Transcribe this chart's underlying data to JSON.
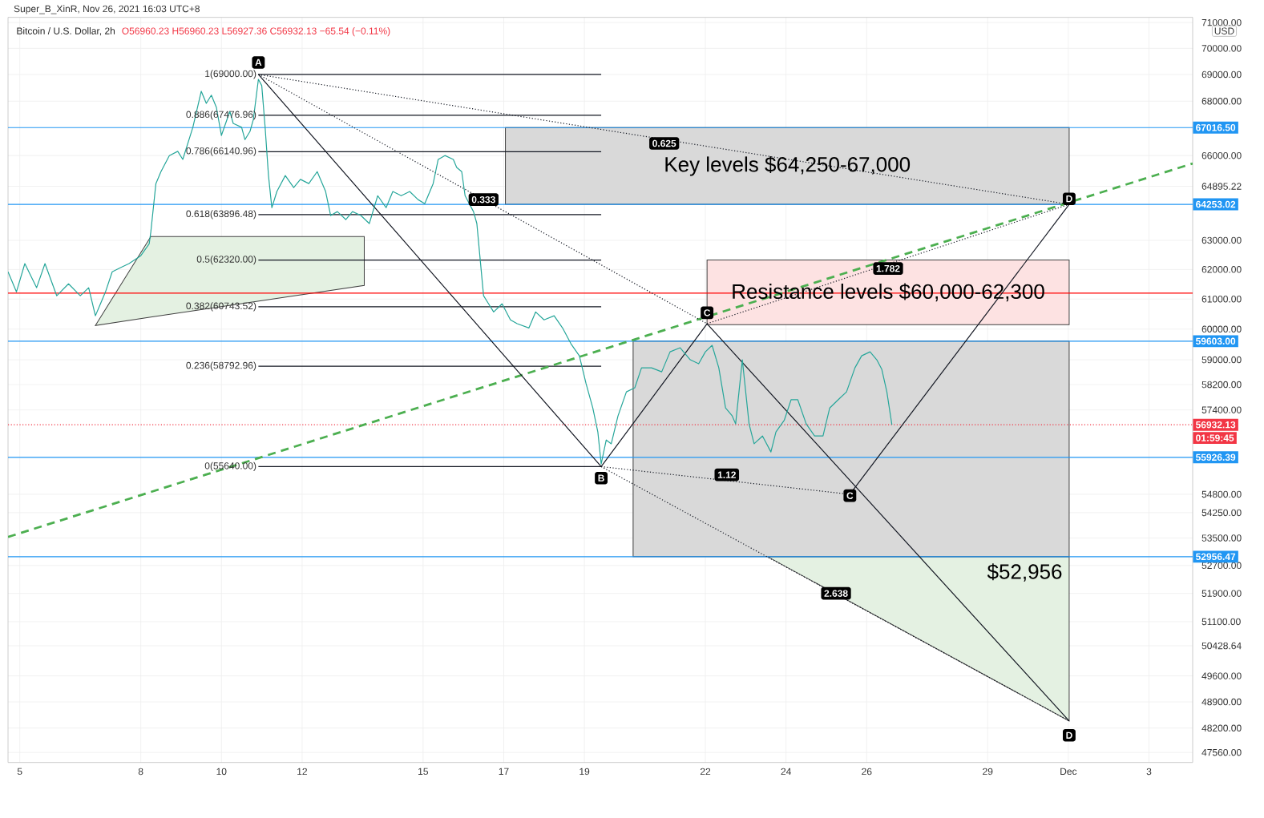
{
  "chart_data": {
    "type": "line",
    "title": "Bitcoin / U.S. Dollar, 2h",
    "subtitle": "O56960.23 H56960.23 L56927.36 C56932.13 −65.54 (−0.11%)",
    "ylabel": "USD",
    "log": "y",
    "grid": true,
    "xlim": [
      "2021-11-04T17:00",
      "2021-12-04T02:00"
    ],
    "ylim": [
      47300,
      71200
    ],
    "xticks": [
      {
        "value": "2021-11-05",
        "label": "5"
      },
      {
        "value": "2021-11-08",
        "label": "8"
      },
      {
        "value": "2021-11-10",
        "label": "10"
      },
      {
        "value": "2021-11-12",
        "label": "12"
      },
      {
        "value": "2021-11-15",
        "label": "15"
      },
      {
        "value": "2021-11-17",
        "label": "17"
      },
      {
        "value": "2021-11-19",
        "label": "19"
      },
      {
        "value": "2021-11-22",
        "label": "22"
      },
      {
        "value": "2021-11-24",
        "label": "24"
      },
      {
        "value": "2021-11-26",
        "label": "26"
      },
      {
        "value": "2021-11-29",
        "label": "29"
      },
      {
        "value": "2021-12-01",
        "label": "Dec"
      },
      {
        "value": "2021-12-03",
        "label": "3"
      }
    ],
    "yticks": [
      {
        "value": 47560,
        "label": "47560.00"
      },
      {
        "value": 48200,
        "label": "48200.00"
      },
      {
        "value": 48900,
        "label": "48900.00"
      },
      {
        "value": 49600,
        "label": "49600.00"
      },
      {
        "value": 50428.64,
        "label": "50428.64"
      },
      {
        "value": 51100,
        "label": "51100.00"
      },
      {
        "value": 51900,
        "label": "51900.00"
      },
      {
        "value": 52700,
        "label": "52700.00"
      },
      {
        "value": 53500,
        "label": "53500.00"
      },
      {
        "value": 54250,
        "label": "54250.00"
      },
      {
        "value": 54800.0,
        "label": "54800.00"
      },
      {
        "value": 57400,
        "label": "57400.00"
      },
      {
        "value": 58200,
        "label": "58200.00"
      },
      {
        "value": 59000,
        "label": "59000.00"
      },
      {
        "value": 60000,
        "label": "60000.00"
      },
      {
        "value": 61000,
        "label": "61000.00"
      },
      {
        "value": 62000,
        "label": "62000.00"
      },
      {
        "value": 63000,
        "label": "63000.00"
      },
      {
        "value": 64895.22,
        "label": "64895.22"
      },
      {
        "value": 66000,
        "label": "66000.00"
      },
      {
        "value": 68000,
        "label": "68000.00"
      },
      {
        "value": 69000,
        "label": "69000.00"
      },
      {
        "value": 70000,
        "label": "70000.00"
      },
      {
        "value": 71000,
        "label": "71000.00"
      }
    ],
    "series": [
      {
        "type": "area",
        "color": "#d9d9d9",
        "x": [
          "2021-11-17T01:00",
          "2021-12-01T00:30"
        ],
        "values": [
          null,
          null
        ],
        "upper": [
          67016.5,
          67016.5
        ],
        "lower": [
          64253.02,
          64253.02
        ]
      },
      {
        "type": "area",
        "color": "#fde2e2",
        "x": [
          "2021-11-22T01:00",
          "2021-12-01T00:30"
        ],
        "values": [
          null,
          null
        ],
        "upper": [
          62320,
          62320
        ],
        "lower": [
          60150,
          60150
        ]
      },
      {
        "type": "area",
        "color": "#e4f1e2",
        "x": [
          "2021-11-23T13:00",
          "2021-12-01T00:30"
        ],
        "values": [
          null,
          null
        ],
        "upper": [
          52956.47,
          52956.47
        ],
        "lower": [
          52956.47,
          48390
        ]
      },
      {
        "type": "area",
        "color": "#d9d9d9",
        "x": [
          "2021-11-20T05:00",
          "2021-12-01T00:30"
        ],
        "values": [
          null,
          null
        ],
        "upper": [
          59603.0,
          59603.0
        ],
        "lower": [
          52956.47,
          52956.47
        ]
      },
      {
        "type": "area",
        "color": "#e4f1e2",
        "x": [
          "2021-11-06T21:00",
          "2021-11-08T06:00",
          "2021-11-13T13:00"
        ],
        "values": [
          null,
          null,
          null
        ],
        "upper": [
          60120,
          63130,
          63130
        ],
        "lower": [
          60120,
          60400,
          61460
        ]
      },
      {
        "name": "1(69000.00)",
        "color": "#131722",
        "x": [
          "2021-11-10T22:00",
          "2021-11-19T10:00"
        ],
        "values": [
          69000,
          69000
        ]
      },
      {
        "name": "0.886(67476.96)",
        "color": "#131722",
        "x": [
          "2021-11-10T22:00",
          "2021-11-19T10:00"
        ],
        "values": [
          67476.96,
          67476.96
        ]
      },
      {
        "name": "0.786(66140.96)",
        "color": "#131722",
        "x": [
          "2021-11-10T22:00",
          "2021-11-19T10:00"
        ],
        "values": [
          66140.96,
          66140.96
        ]
      },
      {
        "name": "0.618(63896.48)",
        "color": "#131722",
        "x": [
          "2021-11-10T22:00",
          "2021-11-19T10:00"
        ],
        "values": [
          63896.48,
          63896.48
        ]
      },
      {
        "name": "0.5(62320.00)",
        "color": "#131722",
        "x": [
          "2021-11-10T22:00",
          "2021-11-19T10:00"
        ],
        "values": [
          62320,
          62320
        ]
      },
      {
        "name": "0.382(60743.52)",
        "color": "#131722",
        "x": [
          "2021-11-10T22:00",
          "2021-11-19T10:00"
        ],
        "values": [
          60743.52,
          60743.52
        ]
      },
      {
        "name": "0.236(58792.96)",
        "color": "#131722",
        "x": [
          "2021-11-10T22:00",
          "2021-11-19T10:00"
        ],
        "values": [
          58792.96,
          58792.96
        ]
      },
      {
        "name": "0(55640.00)",
        "color": "#131722",
        "x": [
          "2021-11-10T22:00",
          "2021-11-19T10:00"
        ],
        "values": [
          55640,
          55640
        ]
      },
      {
        "color": "#4caf50",
        "line_style": "dashed",
        "x": [
          "2021-11-04T17:00",
          "2021-12-04T02:00"
        ],
        "values": [
          53530,
          65710
        ]
      },
      {
        "color": "#131722",
        "x": [
          "2021-11-10T22:00",
          "2021-11-19T10:00",
          "2021-11-22T01:00",
          "2021-12-01T00:30"
        ],
        "values": [
          69000,
          55640,
          60180,
          48390
        ]
      },
      {
        "color": "#131722",
        "x": [
          "2021-11-25T14:00",
          "2021-12-01T00:30"
        ],
        "values": [
          54800,
          64253.02
        ]
      },
      {
        "color": "#131722",
        "line_style": "dotted",
        "x": [
          "2021-11-10T22:00",
          "2021-12-01T00:30"
        ],
        "values": [
          69000,
          64253.02
        ]
      },
      {
        "color": "#131722",
        "line_style": "dotted",
        "x": [
          "2021-11-10T22:00",
          "2021-11-22T01:00"
        ],
        "values": [
          69000,
          60180
        ]
      },
      {
        "color": "#131722",
        "line_style": "dotted",
        "x": [
          "2021-11-22T01:00",
          "2021-12-01T00:30"
        ],
        "values": [
          60180,
          64253.02
        ]
      },
      {
        "color": "#131722",
        "line_style": "dotted",
        "x": [
          "2021-11-19T10:00",
          "2021-11-25T14:00"
        ],
        "values": [
          55640,
          54800
        ]
      },
      {
        "color": "#131722",
        "line_style": "dotted",
        "x": [
          "2021-11-19T10:00",
          "2021-12-01T00:30"
        ],
        "values": [
          55640,
          48390
        ]
      },
      {
        "color": "#26a69a",
        "x": [
          "2021-11-04T17:00",
          "2021-11-04T22:00",
          "2021-11-05T03:00",
          "2021-11-05T10:00",
          "2021-11-05T15:00",
          "2021-11-05T22:00",
          "2021-11-06T05:00",
          "2021-11-06T12:00",
          "2021-11-06T17:00",
          "2021-11-06T21:00",
          "2021-11-07T00:00",
          "2021-11-07T03:00",
          "2021-11-07T07:00",
          "2021-11-07T12:00",
          "2021-11-07T17:00",
          "2021-11-08T00:00",
          "2021-11-08T05:00",
          "2021-11-08T06:00",
          "2021-11-08T09:00",
          "2021-11-08T12:00",
          "2021-11-08T17:00",
          "2021-11-08T22:00",
          "2021-11-09T01:00",
          "2021-11-09T07:00",
          "2021-11-09T12:00",
          "2021-11-09T15:00",
          "2021-11-09T18:00",
          "2021-11-09T21:00",
          "2021-11-10T00:00",
          "2021-11-10T05:00",
          "2021-11-10T07:00",
          "2021-11-10T12:00",
          "2021-11-10T14:00",
          "2021-11-10T17:00",
          "2021-11-10T19:00",
          "2021-11-10T22:00",
          "2021-11-11T00:00",
          "2021-11-11T02:00",
          "2021-11-11T04:00",
          "2021-11-11T06:00",
          "2021-11-11T09:00",
          "2021-11-11T14:00",
          "2021-11-11T19:00",
          "2021-11-11T23:00",
          "2021-11-12T04:00",
          "2021-11-12T09:00",
          "2021-11-12T14:00",
          "2021-11-12T17:00",
          "2021-11-12T21:00",
          "2021-11-13T02:00",
          "2021-11-13T06:00",
          "2021-11-13T11:00",
          "2021-11-13T16:00",
          "2021-11-13T21:00",
          "2021-11-14T02:00",
          "2021-11-14T06:00",
          "2021-11-14T11:00",
          "2021-11-14T16:00",
          "2021-11-14T21:00",
          "2021-11-15T01:00",
          "2021-11-15T06:00",
          "2021-11-15T09:00",
          "2021-11-15T13:00",
          "2021-11-15T18:00",
          "2021-11-15T20:00",
          "2021-11-15T23:00",
          "2021-11-16T01:00",
          "2021-11-16T06:00",
          "2021-11-16T08:00",
          "2021-11-16T10:00",
          "2021-11-16T12:00",
          "2021-11-16T15:00",
          "2021-11-16T18:00",
          "2021-11-16T23:00",
          "2021-11-17T04:00",
          "2021-11-17T08:00",
          "2021-11-17T15:00",
          "2021-11-17T19:00",
          "2021-11-18T00:00",
          "2021-11-18T06:00",
          "2021-11-18T11:00",
          "2021-11-18T16:00",
          "2021-11-18T21:00",
          "2021-11-19T01:00",
          "2021-11-19T05:00",
          "2021-11-19T08:00",
          "2021-11-19T10:00",
          "2021-11-19T13:00",
          "2021-11-19T16:00",
          "2021-11-19T20:00",
          "2021-11-20T01:00",
          "2021-11-20T06:00",
          "2021-11-20T10:00",
          "2021-11-20T16:00",
          "2021-11-20T22:00",
          "2021-11-21T03:00",
          "2021-11-21T09:00",
          "2021-11-21T15:00",
          "2021-11-21T20:00",
          "2021-11-22T00:00",
          "2021-11-22T04:00",
          "2021-11-22T08:00",
          "2021-11-22T12:00",
          "2021-11-22T16:00",
          "2021-11-22T18:00",
          "2021-11-22T22:00",
          "2021-11-23T02:00",
          "2021-11-23T05:00",
          "2021-11-23T10:00",
          "2021-11-23T15:00",
          "2021-11-23T18:00",
          "2021-11-23T23:00",
          "2021-11-24T03:00",
          "2021-11-24T07:00",
          "2021-11-24T12:00",
          "2021-11-24T17:00",
          "2021-11-24T22:00",
          "2021-11-25T02:00",
          "2021-11-25T07:00",
          "2021-11-25T12:00",
          "2021-11-25T17:00",
          "2021-11-25T21:00",
          "2021-11-26T02:00",
          "2021-11-26T06:00",
          "2021-11-26T09:00",
          "2021-11-26T12:00",
          "2021-11-26T15:00"
        ],
        "values": [
          61920,
          61240,
          62200,
          61380,
          62200,
          61110,
          61510,
          61110,
          61380,
          60440,
          60840,
          61240,
          61920,
          62060,
          62200,
          62470,
          62880,
          63300,
          64990,
          65420,
          66000,
          66150,
          65860,
          67030,
          68370,
          67920,
          68220,
          67770,
          66730,
          67620,
          67170,
          67030,
          66580,
          66880,
          67320,
          68820,
          68580,
          67030,
          65280,
          64140,
          64710,
          65280,
          64850,
          65140,
          64990,
          65420,
          64710,
          63860,
          64000,
          63720,
          64000,
          63860,
          63580,
          64560,
          64140,
          64710,
          64560,
          64710,
          64420,
          64280,
          64990,
          65860,
          66000,
          65860,
          65570,
          65420,
          64560,
          64000,
          63580,
          62330,
          61110,
          60840,
          60570,
          60840,
          60310,
          60180,
          60040,
          60570,
          60310,
          60440,
          60040,
          59520,
          59130,
          58230,
          57460,
          56710,
          55720,
          56460,
          56340,
          57210,
          57970,
          58100,
          58740,
          58740,
          58610,
          59260,
          59390,
          59000,
          58870,
          59260,
          59470,
          58740,
          57460,
          57210,
          56960,
          59000,
          56960,
          56340,
          56580,
          56090,
          56710,
          57080,
          57720,
          57720,
          56960,
          56580,
          56580,
          57460,
          57720,
          57970,
          58740,
          59130,
          59260,
          59000,
          58690,
          57970,
          56932.13
        ]
      }
    ],
    "ref_lines": [
      {
        "axis": "y",
        "value": 67016.5,
        "label": "67016.50",
        "color": "#2196f3"
      },
      {
        "axis": "y",
        "value": 64253.02,
        "label": "64253.02",
        "color": "#2196f3"
      },
      {
        "axis": "y",
        "value": 61200,
        "color": "#ff0000"
      },
      {
        "axis": "y",
        "value": 59603.0,
        "label": "59603.00",
        "color": "#2196f3"
      },
      {
        "axis": "y",
        "value": 56932.13,
        "label": "56932.13",
        "color": "#f23645",
        "line_style": "dotted"
      },
      {
        "axis": "y",
        "value": 55926.39,
        "label": "55926.39",
        "color": "#2196f3"
      },
      {
        "axis": "y",
        "value": 52956.47,
        "label": "52956.47",
        "color": "#2196f3"
      }
    ],
    "annotations": [
      "Super_B_XinR, Nov 26, 2021 16:03 UTC+8",
      "Key levels $64,250-67,000",
      "Resistance levels $60,000-62,300",
      "$52,956",
      {
        "text": "A",
        "x": "2021-11-10T22:00",
        "y": 69460
      },
      {
        "text": "B",
        "x": "2021-11-19T10:00",
        "y": 55290
      },
      {
        "text": "C",
        "x": "2021-11-22T01:00",
        "y": 60540
      },
      {
        "text": "C",
        "x": "2021-11-25T14:00",
        "y": 54760
      },
      {
        "text": "D",
        "x": "2021-12-01T00:30",
        "y": 64450
      },
      {
        "text": "D",
        "x": "2021-12-01T00:30",
        "y": 48010
      },
      {
        "text": "0.625",
        "x": "2021-11-20T23:30",
        "y": 66440
      },
      {
        "text": "0.333",
        "x": "2021-11-16T12:00",
        "y": 64420
      },
      {
        "text": "1.782",
        "x": "2021-11-26T12:45",
        "y": 62030
      },
      {
        "text": "1.12",
        "x": "2021-11-22T12:45",
        "y": 55390
      },
      {
        "text": "2.638",
        "x": "2021-11-25T05:45",
        "y": 51900
      },
      "01:59:45"
    ]
  }
}
